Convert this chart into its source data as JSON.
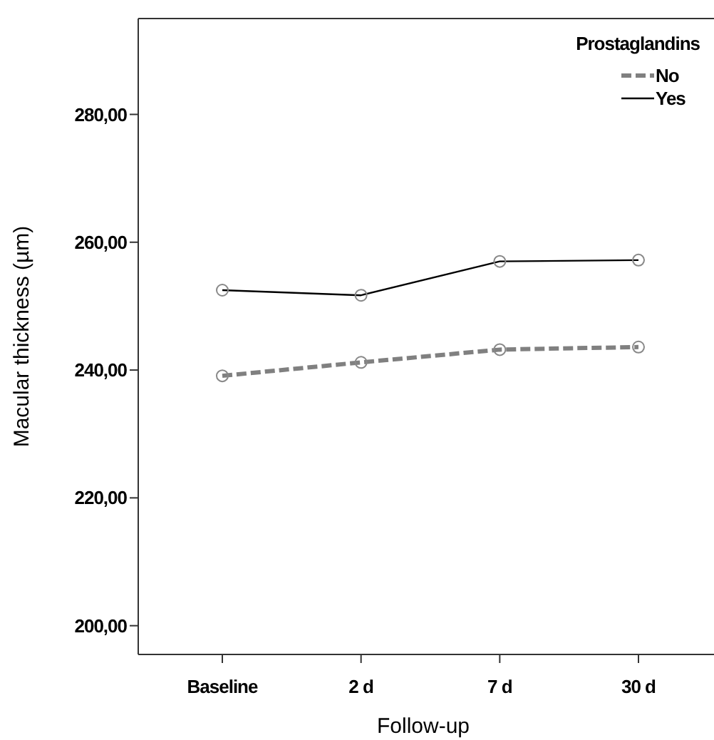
{
  "chart_data": {
    "type": "line",
    "xlabel": "Follow-up",
    "ylabel": "Macular thickness (µm)",
    "legend_title": "Prostaglandins",
    "categories": [
      "Baseline",
      "2 d",
      "7 d",
      "30 d"
    ],
    "series": [
      {
        "name": "No",
        "color": "#808080",
        "line_style": "dashed",
        "values": [
          239.1,
          241.2,
          243.2,
          243.6
        ]
      },
      {
        "name": "Yes",
        "color": "#000000",
        "line_style": "solid",
        "values": [
          252.5,
          251.7,
          257.0,
          257.2
        ]
      }
    ],
    "ylim": [
      195.5,
      295
    ],
    "yticks": [
      {
        "value": 200,
        "label": "200,00"
      },
      {
        "value": 220,
        "label": "220,00"
      },
      {
        "value": 240,
        "label": "240,00"
      },
      {
        "value": 260,
        "label": "260,00"
      },
      {
        "value": 280,
        "label": "280,00"
      }
    ],
    "marker": "circle",
    "grid": false,
    "legend": "top right"
  }
}
